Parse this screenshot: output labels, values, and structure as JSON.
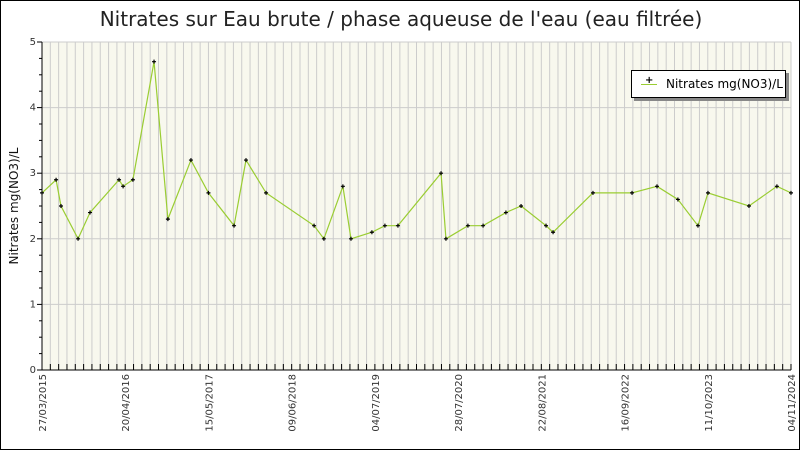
{
  "chart_data": {
    "type": "line",
    "title": "Nitrates sur Eau brute / phase aqueuse de l'eau (eau filtrée)",
    "xlabel": "",
    "ylabel": "Nitrates mg(NO3)/L",
    "ylim": [
      0,
      5
    ],
    "yticks": [
      "0",
      "1",
      "2",
      "3",
      "4",
      "5"
    ],
    "xlim": [
      "2015-03-27",
      "2024-11-04"
    ],
    "xtick_labels": [
      "27/03/2015",
      "20/04/2016",
      "15/05/2017",
      "09/06/2018",
      "04/07/2019",
      "28/07/2020",
      "22/08/2021",
      "16/09/2022",
      "11/10/2023",
      "04/11/2024"
    ],
    "grid": true,
    "legend_position": "top-right",
    "colors": {
      "line": "#9acd32",
      "marker": "#000000",
      "plot_bg": "#f8f8ee",
      "grid": "#cccccc"
    },
    "series": [
      {
        "name": "Nitrates mg(NO3)/L",
        "x": [
          "2015-03-27",
          "2015-06-01",
          "2015-06-24",
          "2015-09-12",
          "2015-11-07",
          "2016-03-22",
          "2016-04-10",
          "2016-05-26",
          "2016-09-02",
          "2016-11-06",
          "2017-02-22",
          "2017-05-15",
          "2017-09-12",
          "2017-11-07",
          "2018-02-09",
          "2018-09-22",
          "2018-11-07",
          "2019-02-04",
          "2019-03-14",
          "2019-06-20",
          "2019-08-20",
          "2019-10-20",
          "2020-05-09",
          "2020-06-01",
          "2020-09-12",
          "2020-11-22",
          "2021-03-09",
          "2021-05-19",
          "2021-09-13",
          "2021-10-16",
          "2022-04-21",
          "2022-10-21",
          "2023-02-15",
          "2023-05-24",
          "2023-08-26",
          "2023-10-12",
          "2024-04-21",
          "2024-08-30",
          "2024-11-04"
        ],
        "y": [
          2.7,
          2.9,
          2.5,
          2.0,
          2.4,
          2.9,
          2.8,
          2.9,
          4.7,
          2.3,
          3.2,
          2.7,
          2.2,
          3.2,
          2.7,
          2.2,
          2.0,
          2.8,
          2.0,
          2.1,
          2.2,
          2.2,
          3.0,
          2.0,
          2.2,
          2.2,
          2.4,
          2.5,
          2.2,
          2.1,
          2.7,
          2.7,
          2.8,
          2.6,
          2.2,
          2.7,
          2.5,
          2.8,
          2.7
        ]
      }
    ]
  }
}
